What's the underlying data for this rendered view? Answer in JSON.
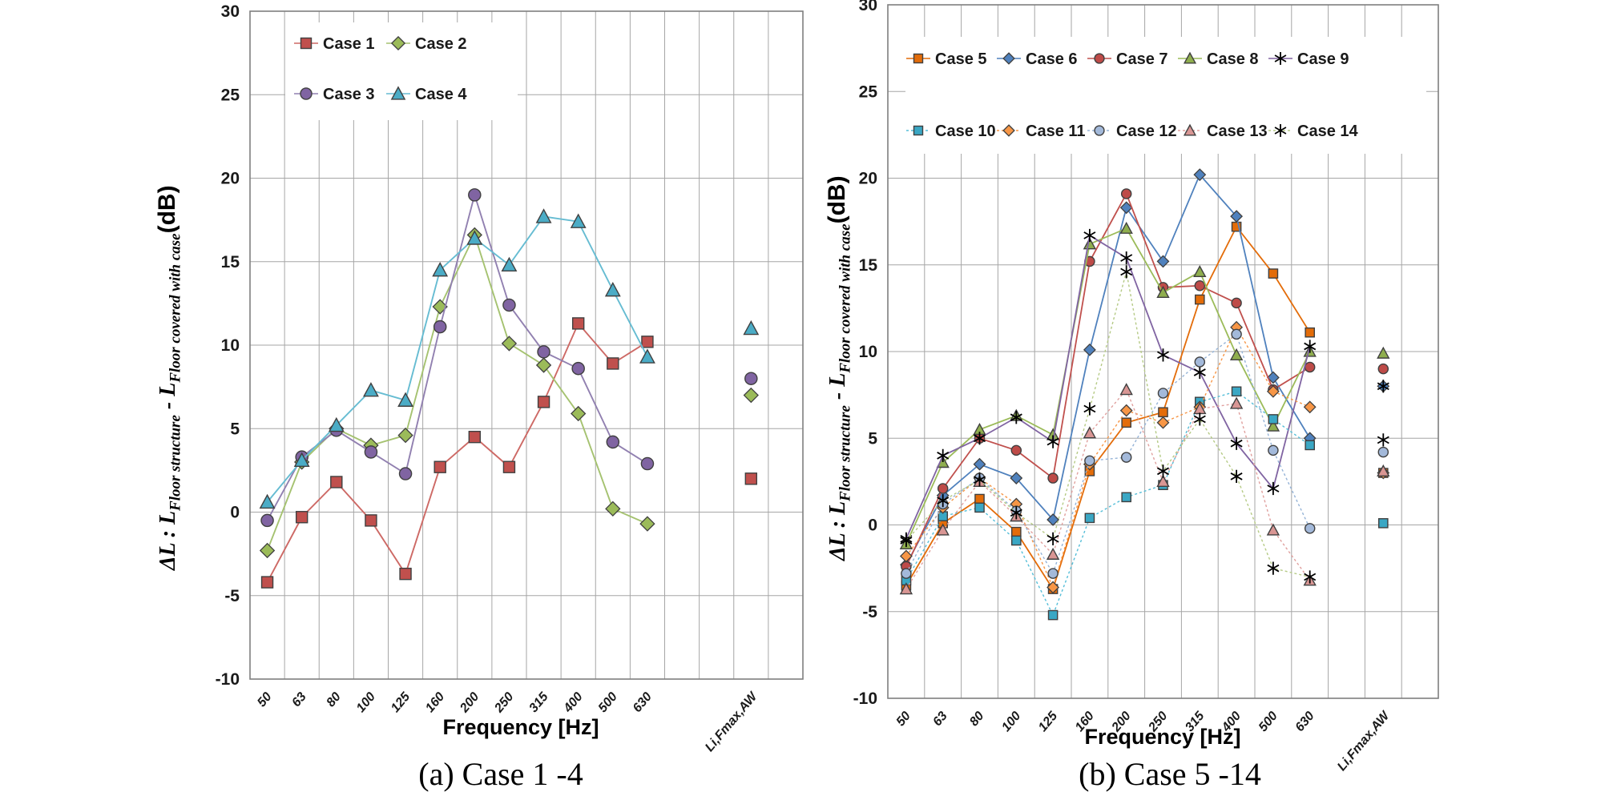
{
  "figure": {
    "caption_a": "(a) Case 1 -4",
    "caption_b": "(b) Case 5 -14",
    "x_axis_title": "Frequency [Hz]",
    "y_axis_title": {
      "p1": "ΔL : L",
      "sub1": "Floor structure",
      "p2": " - L",
      "sub2": "Floor covered with case",
      "p3": "(dB)"
    }
  },
  "chart_data": [
    {
      "type": "line",
      "title": "(a) Case 1 -4",
      "xlabel": "Frequency [Hz]",
      "ylabel": "ΔL : L_Floor structure - L_Floor covered with case (dB)",
      "ylim": [
        -10,
        30
      ],
      "ytick_step": 5,
      "grid": true,
      "legend_position": "top-left-inside",
      "categories": [
        "50",
        "63",
        "80",
        "100",
        "125",
        "160",
        "200",
        "250",
        "315",
        "400",
        "500",
        "630"
      ],
      "li_category": "Li,Fmax,AW",
      "series": [
        {
          "name": "Case 1",
          "marker": "square",
          "line_style": "solid",
          "line_color": "#cd6965",
          "marker_color": "#c0504d",
          "values": [
            -4.2,
            -0.3,
            1.8,
            -0.5,
            -3.7,
            2.7,
            4.5,
            2.7,
            6.6,
            11.3,
            8.9,
            10.2
          ],
          "li_value": 2.0
        },
        {
          "name": "Case 2",
          "marker": "diamond",
          "line_style": "solid",
          "line_color": "#a5c270",
          "marker_color": "#9bbb59",
          "values": [
            -2.3,
            3.0,
            5.0,
            4.0,
            4.6,
            12.3,
            16.6,
            10.1,
            8.8,
            5.9,
            0.2,
            -0.7
          ],
          "li_value": 7.0
        },
        {
          "name": "Case 3",
          "marker": "circle",
          "line_style": "solid",
          "line_color": "#9180b0",
          "marker_color": "#8064a2",
          "values": [
            -0.5,
            3.3,
            4.9,
            3.6,
            2.3,
            11.1,
            19.0,
            12.4,
            9.6,
            8.6,
            4.2,
            2.9
          ],
          "li_value": 8.0
        },
        {
          "name": "Case 4",
          "marker": "triangle",
          "line_style": "solid",
          "line_color": "#66bcd2",
          "marker_color": "#4bacc6",
          "values": [
            0.6,
            3.1,
            5.2,
            7.3,
            6.7,
            14.5,
            16.4,
            14.8,
            17.7,
            17.4,
            13.3,
            9.3
          ],
          "li_value": 11.0
        }
      ]
    },
    {
      "type": "line",
      "title": "(b) Case 5 -14",
      "xlabel": "Frequency [Hz]",
      "ylabel": "ΔL : L_Floor structure - L_Floor covered with case (dB)",
      "ylim": [
        -10,
        30
      ],
      "ytick_step": 5,
      "grid": true,
      "legend_position": "top-inside-two-rows",
      "categories": [
        "50",
        "63",
        "80",
        "100",
        "125",
        "160",
        "200",
        "250",
        "315",
        "400",
        "500",
        "630"
      ],
      "li_category": "Li,Fmax,AW",
      "series": [
        {
          "name": "Case 5",
          "marker": "square",
          "line_style": "solid",
          "line_color": "#e36c09",
          "marker_color": "#e36c09",
          "values": [
            -3.5,
            0.1,
            1.5,
            -0.4,
            -3.7,
            3.1,
            5.9,
            6.5,
            13.0,
            17.2,
            14.5,
            11.1
          ],
          "li_value": 3.0
        },
        {
          "name": "Case 6",
          "marker": "diamond",
          "line_style": "solid",
          "line_color": "#4f81bd",
          "marker_color": "#4f81bd",
          "values": [
            -2.3,
            1.7,
            3.5,
            2.7,
            0.3,
            10.1,
            18.3,
            15.2,
            20.2,
            17.8,
            8.5,
            5.0
          ],
          "li_value": 8.0
        },
        {
          "name": "Case 7",
          "marker": "circle",
          "line_style": "solid",
          "line_color": "#c0504d",
          "marker_color": "#be4b48",
          "values": [
            -2.4,
            2.1,
            5.0,
            4.3,
            2.7,
            15.2,
            19.1,
            13.7,
            13.8,
            12.8,
            7.8,
            9.1
          ],
          "li_value": 9.0
        },
        {
          "name": "Case 8",
          "marker": "triangle",
          "line_style": "solid",
          "line_color": "#9bbb59",
          "marker_color": "#8fae4e",
          "values": [
            -1.1,
            3.6,
            5.5,
            6.3,
            5.2,
            16.2,
            17.1,
            13.4,
            14.6,
            9.8,
            5.7,
            10.0
          ],
          "li_value": 9.9
        },
        {
          "name": "Case 9",
          "marker": "star",
          "line_style": "solid",
          "line_color": "#8064a2",
          "marker_color": "#000000",
          "values": [
            -0.8,
            4.0,
            5.0,
            6.2,
            4.8,
            16.7,
            15.4,
            9.8,
            8.8,
            4.7,
            2.1,
            10.3
          ],
          "li_value": 8.0
        },
        {
          "name": "Case 10",
          "marker": "square",
          "line_style": "dashed",
          "line_color": "#55bed8",
          "marker_color": "#3aa7c4",
          "values": [
            -3.2,
            0.5,
            1.0,
            -0.9,
            -5.2,
            0.4,
            1.6,
            2.3,
            7.1,
            7.7,
            6.1,
            4.6
          ],
          "li_value": 0.1
        },
        {
          "name": "Case 11",
          "marker": "diamond",
          "line_style": "dashed",
          "line_color": "#f79646",
          "marker_color": "#f79646",
          "values": [
            -1.8,
            1.0,
            2.7,
            1.2,
            -3.6,
            3.5,
            6.6,
            5.9,
            6.8,
            11.4,
            7.7,
            6.8
          ],
          "li_value": 3.0
        },
        {
          "name": "Case 12",
          "marker": "circle",
          "line_style": "dashed",
          "line_color": "#95b3d7",
          "marker_color": "#a3b9da",
          "values": [
            -2.8,
            1.2,
            2.7,
            0.8,
            -2.8,
            3.7,
            3.9,
            7.6,
            9.4,
            11.0,
            4.3,
            -0.2
          ],
          "li_value": 4.2
        },
        {
          "name": "Case 13",
          "marker": "triangle",
          "line_style": "dashed",
          "line_color": "#e0a09e",
          "marker_color": "#d99694",
          "values": [
            -3.7,
            -0.3,
            2.5,
            0.5,
            -1.7,
            5.3,
            7.8,
            2.5,
            6.7,
            7.0,
            -0.3,
            -3.2
          ],
          "li_value": 3.1
        },
        {
          "name": "Case 14",
          "marker": "star",
          "line_style": "dashed",
          "line_color": "#b5ca85",
          "marker_color": "#000000",
          "values": [
            -0.9,
            1.4,
            2.6,
            0.7,
            -0.8,
            6.7,
            14.6,
            3.1,
            6.1,
            2.8,
            -2.5,
            -3.0
          ],
          "li_value": 4.9
        }
      ]
    }
  ]
}
